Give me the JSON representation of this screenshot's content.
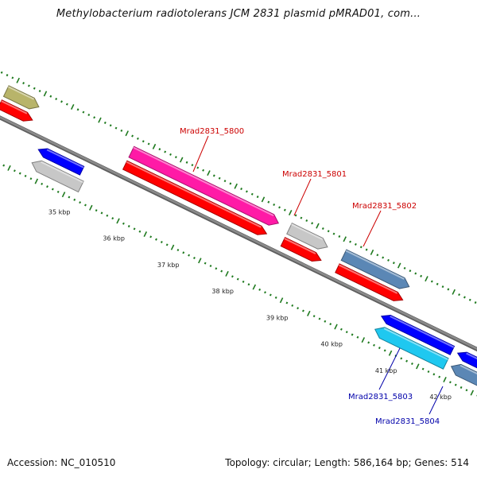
{
  "title": "Methylobacterium radiotolerans JCM 2831 plasmid pMRAD01, com...",
  "footer": {
    "accession": "Accession: NC_010510",
    "summary": "Topology: circular; Length: 586,164 bp; Genes: 514"
  },
  "colors": {
    "backbone": "#8a8a8a",
    "tick": "#1f7a1f",
    "label_plus": "#cc0000",
    "label_minus": "#0000aa"
  },
  "scale_labels": [
    {
      "label": "35 kbp",
      "kbp": 35
    },
    {
      "label": "36 kbp",
      "kbp": 36
    },
    {
      "label": "37 kbp",
      "kbp": 37
    },
    {
      "label": "38 kbp",
      "kbp": 38
    },
    {
      "label": "39 kbp",
      "kbp": 39
    },
    {
      "label": "40 kbp",
      "kbp": 40
    },
    {
      "label": "41 kbp",
      "kbp": 41
    },
    {
      "label": "42 kbp",
      "kbp": 42
    }
  ],
  "features": [
    {
      "color": "#b8b46a",
      "track": 4,
      "start": 33.4,
      "end": 34.0
    },
    {
      "color": "#ff0000",
      "track": 3,
      "start": 33.4,
      "end": 34.0
    },
    {
      "color": "#0000ff",
      "track": 2,
      "start": 34.3,
      "end": 35.1
    },
    {
      "color": "#c7c7c7",
      "track": 1,
      "start": 34.3,
      "end": 35.2
    },
    {
      "color": "#ff1aa6",
      "track": 4,
      "start": 35.7,
      "end": 38.4
    },
    {
      "color": "#ff0000",
      "track": 3,
      "start": 35.7,
      "end": 38.3
    },
    {
      "color": "#c7c7c7",
      "track": 4,
      "start": 38.6,
      "end": 39.3
    },
    {
      "color": "#ff0000",
      "track": 3,
      "start": 38.6,
      "end": 39.3
    },
    {
      "color": "#5b87b5",
      "track": 4,
      "start": 39.6,
      "end": 40.8
    },
    {
      "color": "#ff0000",
      "track": 3,
      "start": 39.6,
      "end": 40.8
    },
    {
      "color": "#0000ff",
      "track": 2,
      "start": 40.6,
      "end": 41.9
    },
    {
      "color": "#1fc8f0",
      "track": 1,
      "start": 40.6,
      "end": 41.9
    },
    {
      "color": "#0000ff",
      "track": 2,
      "start": 42.0,
      "end": 43.0
    },
    {
      "color": "#5b87b5",
      "track": 1,
      "start": 42.0,
      "end": 43.0
    }
  ],
  "gene_labels": [
    {
      "label": "Mrad2831_5800",
      "strand": "plus"
    },
    {
      "label": "Mrad2831_5801",
      "strand": "plus"
    },
    {
      "label": "Mrad2831_5802",
      "strand": "plus"
    },
    {
      "label": "Mrad2831_5803",
      "strand": "minus"
    },
    {
      "label": "Mrad2831_5804",
      "strand": "minus"
    }
  ]
}
